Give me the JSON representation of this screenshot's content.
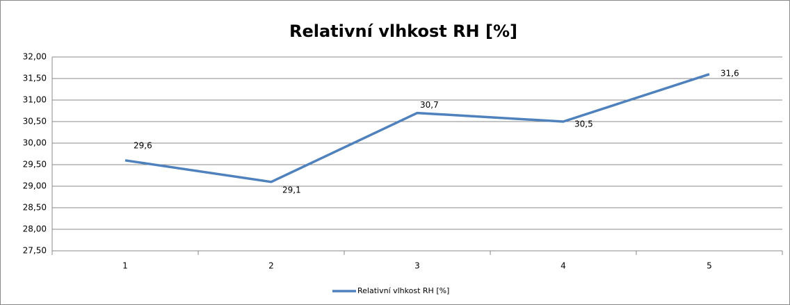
{
  "chart_data": {
    "type": "line",
    "title": "Relativní vlhkost RH [%]",
    "categories": [
      "1",
      "2",
      "3",
      "4",
      "5"
    ],
    "series": [
      {
        "name": "Relativní vlhkost RH [%]",
        "color": "#4f81bd",
        "values": [
          29.6,
          29.1,
          30.7,
          30.5,
          31.6
        ],
        "value_labels": [
          "29,6",
          "29,1",
          "30,7",
          "30,5",
          "31,6"
        ]
      }
    ],
    "ylim": [
      27.5,
      32
    ],
    "yticks": [
      {
        "value": 27.5,
        "label": "27,50"
      },
      {
        "value": 28,
        "label": "28,00"
      },
      {
        "value": 28.5,
        "label": "28,50"
      },
      {
        "value": 29,
        "label": "29,00"
      },
      {
        "value": 29.5,
        "label": "29,50"
      },
      {
        "value": 30,
        "label": "30,00"
      },
      {
        "value": 30.5,
        "label": "30,50"
      },
      {
        "value": 31,
        "label": "31,00"
      },
      {
        "value": 31.5,
        "label": "31,50"
      },
      {
        "value": 32,
        "label": "32,00"
      }
    ],
    "grid": true,
    "legend": "bottom"
  }
}
